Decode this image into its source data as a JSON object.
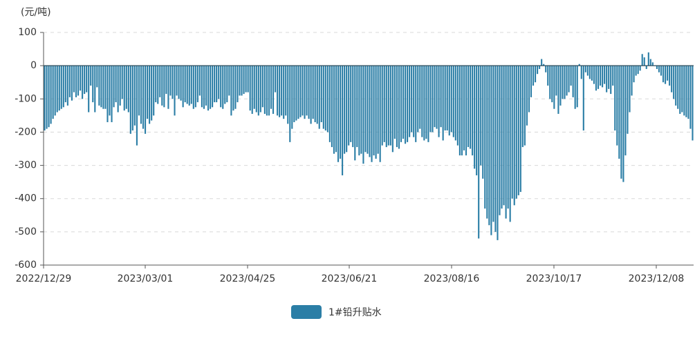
{
  "chart_data": {
    "type": "bar",
    "unit_label": "(元/吨)",
    "ylim": [
      -600,
      100
    ],
    "y_ticks": [
      "100",
      "0",
      "-100",
      "-200",
      "-300",
      "-400",
      "-500",
      "-600"
    ],
    "x_ticks": [
      "2022/12/29",
      "2023/03/01",
      "2023/04/25",
      "2023/06/21",
      "2023/08/16",
      "2023/10/17",
      "2023/12/08"
    ],
    "grid": "horizontal-dashed",
    "legend_position": "bottom-center",
    "series": [
      {
        "name": "1#铅升贴水",
        "color": "#2b7ea6",
        "values": [
          -195,
          -190,
          -185,
          -175,
          -160,
          -150,
          -140,
          -135,
          -130,
          -125,
          -110,
          -120,
          -95,
          -105,
          -80,
          -95,
          -90,
          -75,
          -100,
          -85,
          -80,
          -140,
          -60,
          -110,
          -140,
          -65,
          -120,
          -125,
          -130,
          -130,
          -170,
          -150,
          -170,
          -125,
          -110,
          -140,
          -120,
          -100,
          -135,
          -130,
          -140,
          -205,
          -195,
          -180,
          -240,
          -150,
          -175,
          -190,
          -205,
          -160,
          -175,
          -165,
          -150,
          -110,
          -115,
          -95,
          -120,
          -125,
          -85,
          -130,
          -90,
          -100,
          -150,
          -90,
          -100,
          -105,
          -125,
          -110,
          -115,
          -120,
          -115,
          -130,
          -125,
          -110,
          -90,
          -125,
          -130,
          -120,
          -135,
          -130,
          -125,
          -110,
          -110,
          -100,
          -125,
          -130,
          -115,
          -110,
          -90,
          -150,
          -135,
          -130,
          -110,
          -90,
          -90,
          -85,
          -80,
          -80,
          -135,
          -145,
          -130,
          -140,
          -150,
          -140,
          -125,
          -145,
          -150,
          -150,
          -130,
          -145,
          -80,
          -150,
          -155,
          -150,
          -160,
          -150,
          -175,
          -230,
          -190,
          -170,
          -165,
          -160,
          -155,
          -150,
          -160,
          -150,
          -160,
          -175,
          -160,
          -170,
          -175,
          -190,
          -170,
          -190,
          -195,
          -200,
          -230,
          -245,
          -265,
          -260,
          -290,
          -280,
          -330,
          -265,
          -260,
          -240,
          -230,
          -245,
          -285,
          -245,
          -270,
          -265,
          -295,
          -260,
          -265,
          -275,
          -290,
          -270,
          -280,
          -265,
          -290,
          -240,
          -230,
          -245,
          -240,
          -240,
          -260,
          -220,
          -245,
          -250,
          -230,
          -220,
          -235,
          -230,
          -215,
          -200,
          -215,
          -230,
          -200,
          -190,
          -215,
          -225,
          -220,
          -230,
          -200,
          -200,
          -185,
          -190,
          -215,
          -185,
          -225,
          -195,
          -195,
          -210,
          -200,
          -215,
          -225,
          -240,
          -270,
          -270,
          -255,
          -270,
          -245,
          -250,
          -270,
          -310,
          -330,
          -520,
          -300,
          -340,
          -430,
          -460,
          -480,
          -510,
          -470,
          -500,
          -525,
          -450,
          -430,
          -420,
          -460,
          -430,
          -470,
          -400,
          -420,
          -400,
          -390,
          -380,
          -245,
          -240,
          -180,
          -140,
          -95,
          -60,
          -50,
          -25,
          -10,
          20,
          5,
          -20,
          -60,
          -100,
          -110,
          -130,
          -90,
          -145,
          -120,
          -100,
          -100,
          -90,
          -80,
          -60,
          -95,
          -130,
          -125,
          5,
          -40,
          -195,
          -20,
          -30,
          -40,
          -45,
          -55,
          -75,
          -70,
          -60,
          -65,
          -55,
          -80,
          -70,
          -85,
          -60,
          -195,
          -240,
          -280,
          -340,
          -350,
          -270,
          -205,
          -140,
          -90,
          -50,
          -30,
          -25,
          -15,
          35,
          25,
          -10,
          40,
          20,
          10,
          0,
          -10,
          -20,
          -30,
          -50,
          -55,
          -45,
          -60,
          -80,
          -100,
          -120,
          -130,
          -145,
          -140,
          -150,
          -155,
          -160,
          -190,
          -225
        ]
      }
    ]
  }
}
